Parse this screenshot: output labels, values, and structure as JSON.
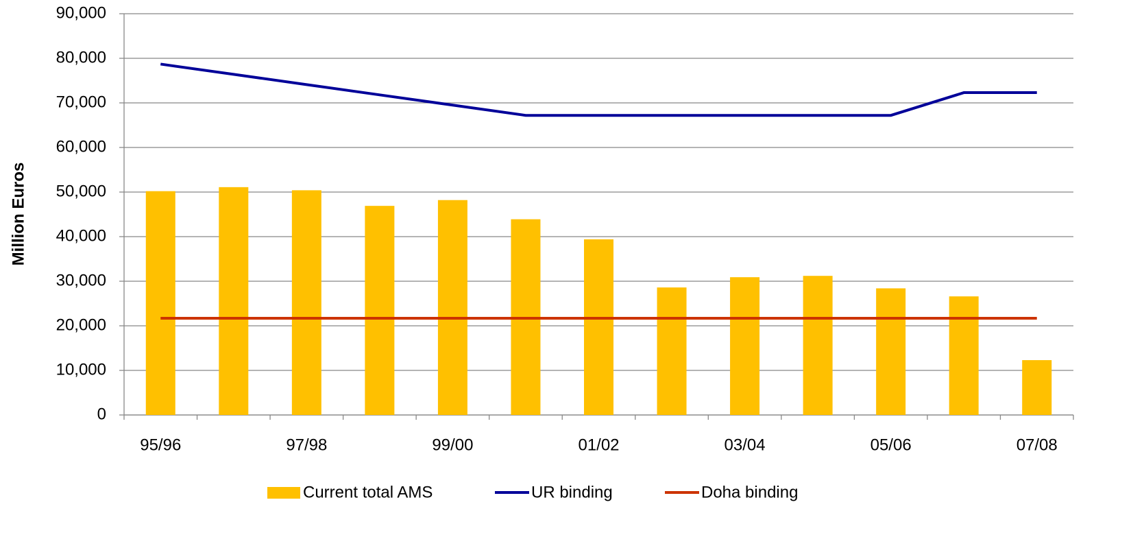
{
  "chart_data": {
    "type": "bar_line",
    "y_axis_label": "Million Euros",
    "categories": [
      "95/96",
      null,
      "97/98",
      null,
      "99/00",
      null,
      "01/02",
      null,
      "03/04",
      null,
      "05/06",
      null,
      "07/08"
    ],
    "series": [
      {
        "name": "Current total AMS",
        "type": "bar",
        "color": "#ffc000",
        "values": [
          50200,
          51100,
          50400,
          46900,
          48200,
          43900,
          39400,
          28600,
          30900,
          31200,
          28400,
          26600,
          12300
        ]
      },
      {
        "name": "UR binding",
        "type": "line",
        "color": "#000099",
        "values": [
          78700,
          76400,
          74100,
          71800,
          69500,
          67200,
          67200,
          67200,
          67200,
          67200,
          67200,
          72300,
          72300
        ]
      },
      {
        "name": "Doha binding",
        "type": "line",
        "color": "#cc3300",
        "values": [
          21700,
          21700,
          21700,
          21700,
          21700,
          21700,
          21700,
          21700,
          21700,
          21700,
          21700,
          21700,
          21700
        ]
      }
    ],
    "ylim": [
      0,
      90000
    ],
    "yticks": [
      0,
      {
        "value": 10000,
        "label": "10,000"
      },
      {
        "value": 20000,
        "label": "20,000"
      },
      {
        "value": 30000,
        "label": "30,000"
      },
      {
        "value": 40000,
        "label": "40,000"
      },
      {
        "value": 50000,
        "label": "50,000"
      },
      {
        "value": 60000,
        "label": "60,000"
      },
      {
        "value": 70000,
        "label": "70,000"
      },
      {
        "value": 80000,
        "label": "80,000"
      },
      {
        "value": 90000,
        "label": "90,000"
      }
    ],
    "grid": true,
    "legend": "bottom"
  }
}
